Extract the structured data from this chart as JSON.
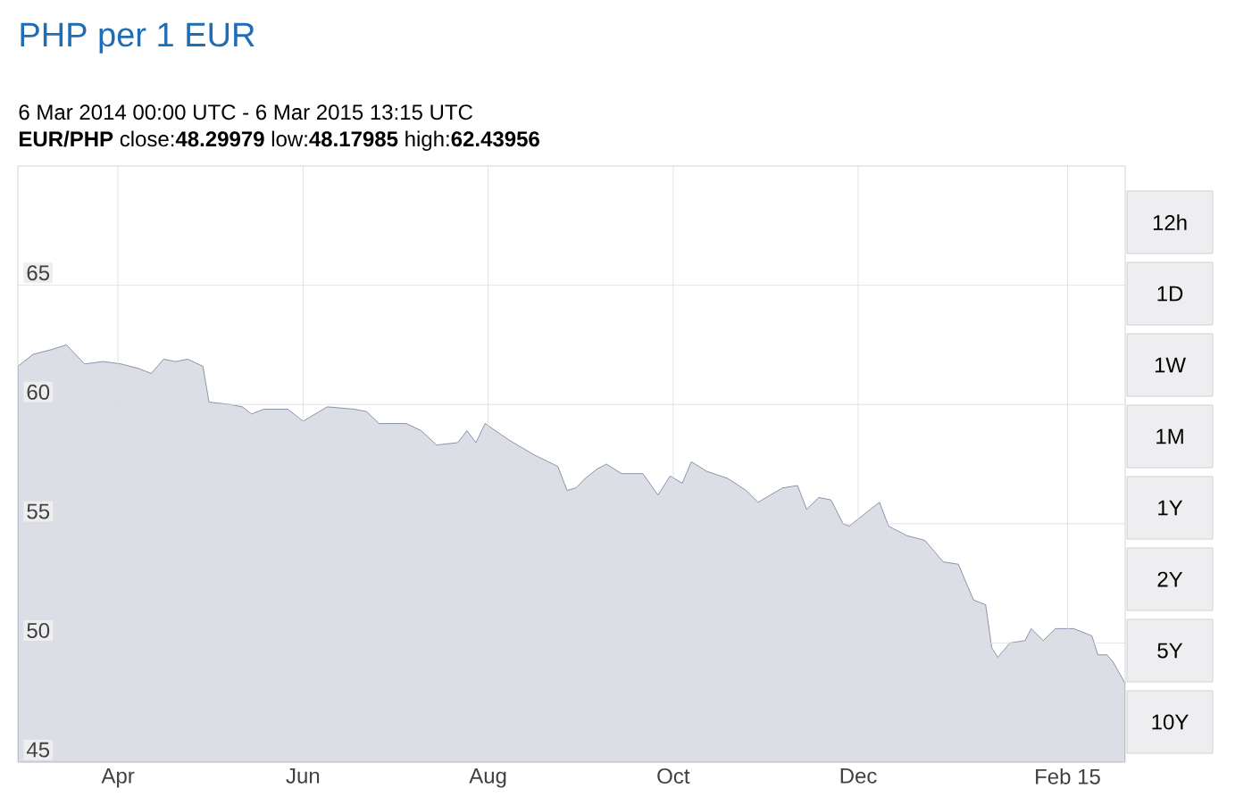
{
  "chart_data": {
    "type": "area",
    "title": "PHP per 1 EUR",
    "subtitle": "6 Mar 2014 00:00 UTC - 6 Mar 2015 13:15 UTC",
    "annotations": [
      "**EUR/PHP** close:**48.29979** low:**48.17985** high:**62.43956**",
      "12h",
      "1D",
      "1W",
      "1M",
      "1Y",
      "2Y",
      "5Y",
      "10Y"
    ],
    "x": [
      "2014-03-06",
      "2014-03-11",
      "2014-03-17",
      "2014-03-22",
      "2014-03-28",
      "2014-04-03",
      "2014-04-09",
      "2014-04-15",
      "2014-04-19",
      "2014-04-23",
      "2014-04-27",
      "2014-05-01",
      "2014-05-06",
      "2014-05-08",
      "2014-05-15",
      "2014-05-19",
      "2014-05-22",
      "2014-05-26",
      "2014-06-03",
      "2014-06-08",
      "2014-06-16",
      "2014-06-25",
      "2014-06-29",
      "2014-07-03",
      "2014-07-12",
      "2014-07-17",
      "2014-07-22",
      "2014-07-29",
      "2014-08-01",
      "2014-08-04",
      "2014-08-07",
      "2014-08-15",
      "2014-08-23",
      "2014-08-31",
      "2014-09-03",
      "2014-09-06",
      "2014-09-09",
      "2014-09-13",
      "2014-09-16",
      "2014-09-21",
      "2014-09-28",
      "2014-10-03",
      "2014-10-07",
      "2014-10-11",
      "2014-10-14",
      "2014-10-19",
      "2014-10-26",
      "2014-11-01",
      "2014-11-05",
      "2014-11-13",
      "2014-11-18",
      "2014-11-21",
      "2014-11-25",
      "2014-11-29",
      "2014-12-03",
      "2014-12-05",
      "2014-12-11",
      "2014-12-15",
      "2014-12-18",
      "2014-12-24",
      "2014-12-30",
      "2015-01-05",
      "2015-01-10",
      "2015-01-15",
      "2015-01-19",
      "2015-01-21",
      "2015-01-23",
      "2015-01-27",
      "2015-02-01",
      "2015-02-03",
      "2015-02-07",
      "2015-02-11",
      "2015-02-17",
      "2015-02-23",
      "2015-02-25",
      "2015-02-28",
      "2015-03-02",
      "2015-03-06"
    ],
    "series": [
      {
        "color": "#737a9c",
        "values": [
          61.6,
          62.1,
          62.3,
          62.5,
          61.7,
          61.8,
          61.7,
          61.5,
          61.3,
          61.9,
          61.8,
          61.9,
          61.6,
          60.1,
          60.0,
          59.9,
          59.6,
          59.8,
          59.8,
          59.3,
          59.9,
          59.8,
          59.7,
          59.2,
          59.2,
          58.9,
          58.3,
          58.4,
          58.9,
          58.4,
          59.2,
          58.5,
          57.9,
          57.4,
          56.4,
          56.5,
          56.9,
          57.3,
          57.5,
          57.1,
          57.1,
          56.2,
          57.0,
          56.7,
          57.6,
          57.2,
          56.9,
          56.4,
          55.9,
          56.5,
          56.6,
          55.6,
          56.1,
          56.0,
          55.0,
          54.9,
          55.5,
          55.9,
          54.9,
          54.5,
          54.3,
          53.4,
          53.3,
          51.8,
          51.6,
          49.8,
          49.4,
          50.0,
          50.1,
          50.6,
          50.1,
          50.6,
          50.6,
          50.3,
          49.5,
          49.5,
          49.2,
          48.3
        ]
      }
    ],
    "xlim": [
      "2014-03-06",
      "2015-03-06"
    ],
    "xticks": [
      {
        "value": "2014-04-08",
        "label": "Apr"
      },
      {
        "value": "2014-06-08",
        "label": "Jun"
      },
      {
        "value": "2014-08-08",
        "label": "Aug"
      },
      {
        "value": "2014-10-08",
        "label": "Oct"
      },
      {
        "value": "2014-12-08",
        "label": "Dec"
      },
      {
        "value": "2015-02-15",
        "label": "Feb 15"
      }
    ],
    "ylim": [
      45,
      70
    ],
    "yticks": [
      45,
      50,
      55,
      60,
      65
    ],
    "grid": true,
    "marker": "none"
  }
}
